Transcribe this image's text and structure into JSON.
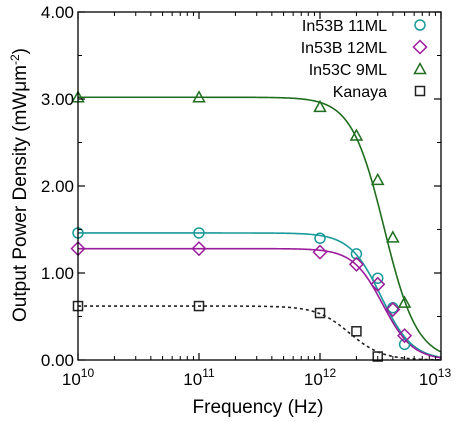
{
  "chart_data": {
    "type": "scatter",
    "xlabel": "Frequency (Hz)",
    "ylabel_main": "Output Power Density (mWμm",
    "ylabel_exp": "-2",
    "ylabel_close": ")",
    "x_scale": "log",
    "xlim": [
      10000000000.0,
      10000000000000.0
    ],
    "ylim": [
      0,
      4
    ],
    "x_ticks": [
      {
        "value": 10000000000.0,
        "base": "10",
        "exp": "10"
      },
      {
        "value": 100000000000.0,
        "base": "10",
        "exp": "11"
      },
      {
        "value": 1000000000000.0,
        "base": "10",
        "exp": "12"
      },
      {
        "value": 10000000000000.0,
        "base": "10",
        "exp": "13"
      }
    ],
    "y_ticks": [
      {
        "value": 0,
        "label": "0.00"
      },
      {
        "value": 1,
        "label": "1.00"
      },
      {
        "value": 2,
        "label": "2.00"
      },
      {
        "value": 3,
        "label": "3.00"
      },
      {
        "value": 4,
        "label": "4.00"
      }
    ],
    "grid": false,
    "legend_position": "top-right",
    "series": [
      {
        "name": "In53B 11ML",
        "marker": "circle",
        "color": "#1a9a9a",
        "line": "solid",
        "x": [
          10000000000.0,
          100000000000.0,
          1000000000000.0,
          2000000000000.0,
          3000000000000.0,
          4000000000000.0,
          5000000000000.0
        ],
        "y": [
          1.46,
          1.46,
          1.4,
          1.22,
          0.94,
          0.6,
          0.18
        ],
        "fit_y0": 1.46,
        "fit_fc": 3200000000000.0,
        "fit_n": 2.1
      },
      {
        "name": "In53B 12ML",
        "marker": "diamond",
        "color": "#9b1c9b",
        "line": "solid",
        "x": [
          10000000000.0,
          100000000000.0,
          1000000000000.0,
          2000000000000.0,
          3000000000000.0,
          4000000000000.0,
          5000000000000.0
        ],
        "y": [
          1.28,
          1.28,
          1.24,
          1.1,
          0.87,
          0.58,
          0.28
        ],
        "fit_y0": 1.28,
        "fit_fc": 3300000000000.0,
        "fit_n": 2.2
      },
      {
        "name": "In53C 9ML",
        "marker": "triangle",
        "color": "#1f6e1f",
        "line": "solid",
        "x": [
          10000000000.0,
          100000000000.0,
          1000000000000.0,
          2000000000000.0,
          3000000000000.0,
          4000000000000.0,
          5000000000000.0
        ],
        "y": [
          3.02,
          3.02,
          2.91,
          2.58,
          2.07,
          1.41,
          0.66
        ],
        "fit_y0": 3.02,
        "fit_fc": 3400000000000.0,
        "fit_n": 2.0
      },
      {
        "name": "Kanaya",
        "marker": "square",
        "color": "#222222",
        "line": "dotted",
        "x": [
          10000000000.0,
          100000000000.0,
          1000000000000.0,
          2000000000000.0,
          3000000000000.0
        ],
        "y": [
          0.62,
          0.62,
          0.54,
          0.33,
          0.04
        ],
        "fit_y0": 0.62,
        "fit_fc": 1750000000000.0,
        "fit_n": 2.0
      }
    ]
  }
}
